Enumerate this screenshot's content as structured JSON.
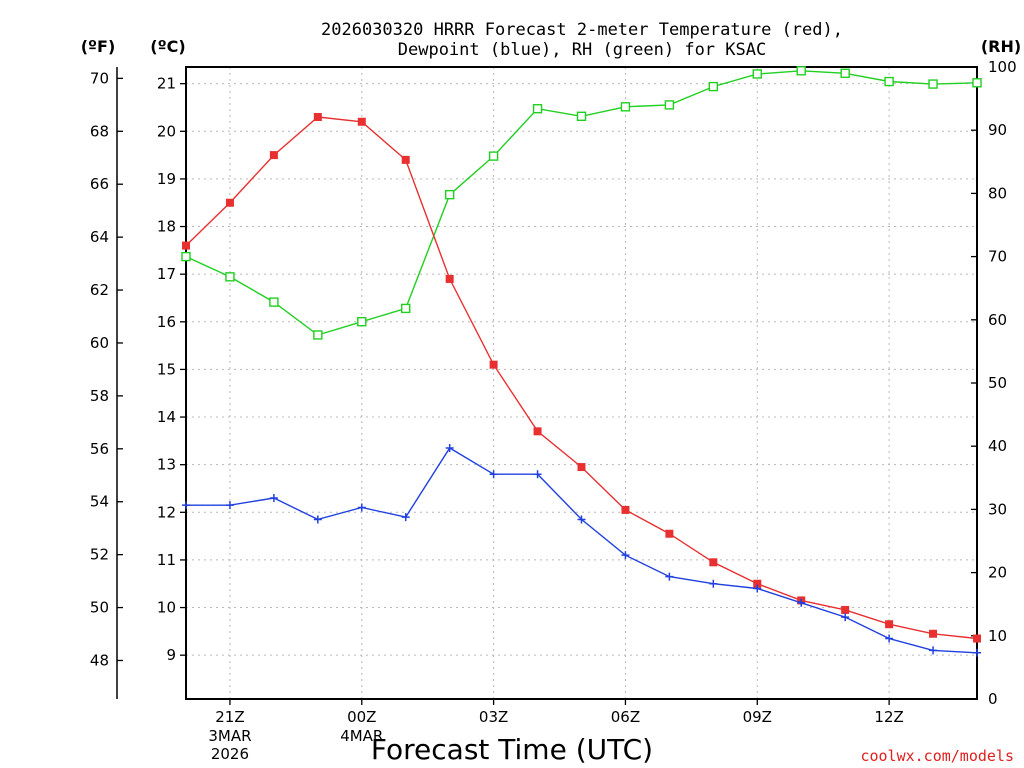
{
  "chart_data": {
    "type": "line",
    "title_lines": [
      "2026030320 HRRR Forecast 2-meter Temperature (red),",
      "Dewpoint (blue), RH (green) for KSAC"
    ],
    "xlabel": "Forecast Time (UTC)",
    "credit": "coolwx.com/models",
    "axes": {
      "fahrenheit": {
        "unit_label": "(ºF)",
        "ticks": [
          48,
          50,
          52,
          54,
          56,
          58,
          60,
          62,
          64,
          66,
          68,
          70
        ]
      },
      "celsius": {
        "unit_label": "(ºC)",
        "range": [
          8.08,
          21.35
        ],
        "ticks": [
          9,
          10,
          11,
          12,
          13,
          14,
          15,
          16,
          17,
          18,
          19,
          20,
          21
        ]
      },
      "rh": {
        "unit_label": "(RH)",
        "range": [
          0,
          100
        ],
        "ticks": [
          0,
          10,
          20,
          30,
          40,
          50,
          60,
          70,
          80,
          90,
          100
        ]
      },
      "x": {
        "range": [
          0,
          18
        ],
        "ticks": [
          {
            "x": 1,
            "label": "21Z",
            "sub": [
              "3MAR",
              "2026"
            ]
          },
          {
            "x": 4,
            "label": "00Z",
            "sub": [
              "4MAR"
            ]
          },
          {
            "x": 7,
            "label": "03Z",
            "sub": []
          },
          {
            "x": 10,
            "label": "06Z",
            "sub": []
          },
          {
            "x": 13,
            "label": "09Z",
            "sub": []
          },
          {
            "x": 16,
            "label": "12Z",
            "sub": []
          }
        ]
      }
    },
    "x": [
      0,
      1,
      2,
      3,
      4,
      5,
      6,
      7,
      8,
      9,
      10,
      11,
      12,
      13,
      14,
      15,
      16,
      17,
      18
    ],
    "series": [
      {
        "name": "Temperature",
        "axis": "celsius",
        "color": "#e83030",
        "marker": "filled-square",
        "values": [
          17.6,
          18.5,
          19.5,
          20.3,
          20.2,
          19.4,
          16.9,
          15.1,
          13.7,
          12.95,
          12.05,
          11.55,
          10.95,
          10.5,
          10.15,
          9.95,
          9.65,
          9.45,
          9.35
        ]
      },
      {
        "name": "Dewpoint",
        "axis": "celsius",
        "color": "#2040e0",
        "marker": "plus",
        "values": [
          12.15,
          12.15,
          12.3,
          11.85,
          12.1,
          11.9,
          13.35,
          12.8,
          12.8,
          11.85,
          11.1,
          10.65,
          10.5,
          10.4,
          10.1,
          9.8,
          9.35,
          9.1,
          9.05
        ]
      },
      {
        "name": "RH",
        "axis": "rh",
        "color": "#20d020",
        "marker": "open-square",
        "values": [
          70,
          66.8,
          62.8,
          57.6,
          59.7,
          61.8,
          79.8,
          85.9,
          93.4,
          92.2,
          93.7,
          94,
          96.9,
          98.9,
          99.4,
          99,
          97.7,
          97.3,
          97.5
        ]
      }
    ]
  }
}
